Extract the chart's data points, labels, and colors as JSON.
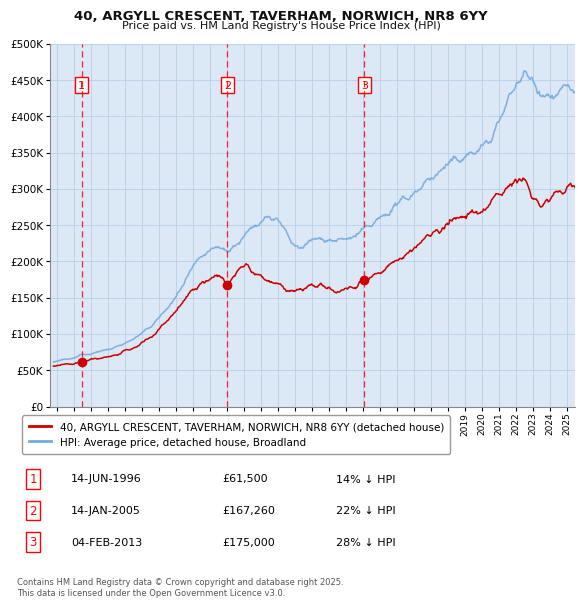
{
  "title": "40, ARGYLL CRESCENT, TAVERHAM, NORWICH, NR8 6YY",
  "subtitle": "Price paid vs. HM Land Registry's House Price Index (HPI)",
  "hpi_color": "#74aadd",
  "price_color": "#cc0000",
  "bg_color": "#dce8f5",
  "ylim": [
    0,
    500000
  ],
  "yticks": [
    0,
    50000,
    100000,
    150000,
    200000,
    250000,
    300000,
    350000,
    400000,
    450000,
    500000
  ],
  "ytick_labels": [
    "£0",
    "£50K",
    "£100K",
    "£150K",
    "£200K",
    "£250K",
    "£300K",
    "£350K",
    "£400K",
    "£450K",
    "£500K"
  ],
  "xlim_start": 1994.6,
  "xlim_end": 2025.5,
  "sale_events": [
    {
      "x": 1996.45,
      "price": 61500,
      "label": "1"
    },
    {
      "x": 2005.04,
      "price": 167260,
      "label": "2"
    },
    {
      "x": 2013.09,
      "price": 175000,
      "label": "3"
    }
  ],
  "legend_line1": "40, ARGYLL CRESCENT, TAVERHAM, NORWICH, NR8 6YY (detached house)",
  "legend_line2": "HPI: Average price, detached house, Broadland",
  "footer": "Contains HM Land Registry data © Crown copyright and database right 2025.\nThis data is licensed under the Open Government Licence v3.0.",
  "table_rows": [
    [
      "1",
      "14-JUN-1996",
      "£61,500",
      "14% ↓ HPI"
    ],
    [
      "2",
      "14-JAN-2005",
      "£167,260",
      "22% ↓ HPI"
    ],
    [
      "3",
      "04-FEB-2013",
      "£175,000",
      "28% ↓ HPI"
    ]
  ],
  "hpi_anchors": [
    [
      1994.8,
      62000
    ],
    [
      1995.0,
      63000
    ],
    [
      1995.5,
      65000
    ],
    [
      1996.0,
      67000
    ],
    [
      1996.45,
      71511
    ],
    [
      1997.0,
      73000
    ],
    [
      1997.5,
      75000
    ],
    [
      1998.0,
      78000
    ],
    [
      1998.5,
      82000
    ],
    [
      1999.0,
      87000
    ],
    [
      1999.5,
      93000
    ],
    [
      2000.0,
      100000
    ],
    [
      2000.5,
      110000
    ],
    [
      2001.0,
      122000
    ],
    [
      2001.5,
      135000
    ],
    [
      2002.0,
      150000
    ],
    [
      2002.5,
      170000
    ],
    [
      2003.0,
      190000
    ],
    [
      2003.5,
      205000
    ],
    [
      2004.0,
      213000
    ],
    [
      2004.5,
      220000
    ],
    [
      2005.04,
      214436
    ],
    [
      2005.5,
      222000
    ],
    [
      2006.0,
      232000
    ],
    [
      2006.5,
      245000
    ],
    [
      2007.0,
      258000
    ],
    [
      2007.5,
      262000
    ],
    [
      2008.0,
      255000
    ],
    [
      2008.5,
      238000
    ],
    [
      2009.0,
      218000
    ],
    [
      2009.5,
      220000
    ],
    [
      2010.0,
      228000
    ],
    [
      2010.5,
      232000
    ],
    [
      2011.0,
      230000
    ],
    [
      2011.5,
      228000
    ],
    [
      2012.0,
      230000
    ],
    [
      2012.5,
      234000
    ],
    [
      2013.09,
      243056
    ],
    [
      2013.5,
      248000
    ],
    [
      2014.0,
      258000
    ],
    [
      2014.5,
      268000
    ],
    [
      2015.0,
      278000
    ],
    [
      2015.5,
      285000
    ],
    [
      2016.0,
      295000
    ],
    [
      2016.5,
      305000
    ],
    [
      2017.0,
      315000
    ],
    [
      2017.5,
      322000
    ],
    [
      2018.0,
      332000
    ],
    [
      2018.5,
      340000
    ],
    [
      2019.0,
      345000
    ],
    [
      2019.5,
      350000
    ],
    [
      2020.0,
      355000
    ],
    [
      2020.5,
      368000
    ],
    [
      2021.0,
      390000
    ],
    [
      2021.5,
      418000
    ],
    [
      2022.0,
      445000
    ],
    [
      2022.5,
      458000
    ],
    [
      2023.0,
      450000
    ],
    [
      2023.5,
      435000
    ],
    [
      2024.0,
      428000
    ],
    [
      2024.5,
      430000
    ],
    [
      2025.0,
      438000
    ],
    [
      2025.5,
      435000
    ]
  ],
  "price_anchors": [
    [
      1994.8,
      55000
    ],
    [
      1995.0,
      56000
    ],
    [
      1995.5,
      57500
    ],
    [
      1996.0,
      59000
    ],
    [
      1996.45,
      61500
    ],
    [
      1997.0,
      64000
    ],
    [
      1997.5,
      66000
    ],
    [
      1998.0,
      68500
    ],
    [
      1998.5,
      71000
    ],
    [
      1999.0,
      75000
    ],
    [
      1999.5,
      80000
    ],
    [
      2000.0,
      87000
    ],
    [
      2000.5,
      95000
    ],
    [
      2001.0,
      107000
    ],
    [
      2001.5,
      118000
    ],
    [
      2002.0,
      132000
    ],
    [
      2002.5,
      148000
    ],
    [
      2003.0,
      162000
    ],
    [
      2003.5,
      170000
    ],
    [
      2004.0,
      175000
    ],
    [
      2004.5,
      180000
    ],
    [
      2005.04,
      167260
    ],
    [
      2005.3,
      175000
    ],
    [
      2005.6,
      183000
    ],
    [
      2006.0,
      192000
    ],
    [
      2006.2,
      196000
    ],
    [
      2006.5,
      185000
    ],
    [
      2007.0,
      178000
    ],
    [
      2007.5,
      172000
    ],
    [
      2008.0,
      168000
    ],
    [
      2008.5,
      160000
    ],
    [
      2009.0,
      158000
    ],
    [
      2009.5,
      162000
    ],
    [
      2010.0,
      167000
    ],
    [
      2010.5,
      165000
    ],
    [
      2011.0,
      162000
    ],
    [
      2011.5,
      160000
    ],
    [
      2012.0,
      163000
    ],
    [
      2012.5,
      165000
    ],
    [
      2013.09,
      175000
    ],
    [
      2013.5,
      178000
    ],
    [
      2014.0,
      185000
    ],
    [
      2014.5,
      193000
    ],
    [
      2015.0,
      200000
    ],
    [
      2015.5,
      208000
    ],
    [
      2016.0,
      218000
    ],
    [
      2016.5,
      228000
    ],
    [
      2017.0,
      237000
    ],
    [
      2017.5,
      244000
    ],
    [
      2018.0,
      252000
    ],
    [
      2018.5,
      258000
    ],
    [
      2019.0,
      262000
    ],
    [
      2019.5,
      265000
    ],
    [
      2020.0,
      268000
    ],
    [
      2020.5,
      278000
    ],
    [
      2021.0,
      292000
    ],
    [
      2021.5,
      305000
    ],
    [
      2022.0,
      315000
    ],
    [
      2022.5,
      310000
    ],
    [
      2023.0,
      290000
    ],
    [
      2023.5,
      278000
    ],
    [
      2024.0,
      285000
    ],
    [
      2024.5,
      295000
    ],
    [
      2025.0,
      303000
    ],
    [
      2025.5,
      305000
    ]
  ]
}
